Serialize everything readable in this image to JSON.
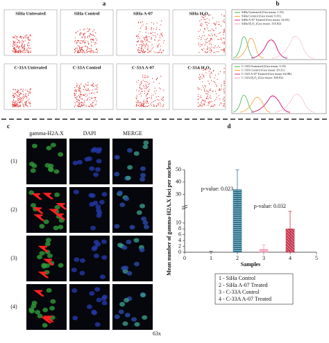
{
  "panel_labels": [
    "a",
    "b",
    "c",
    "d"
  ],
  "panel_a": {
    "plots": [
      "SiHa Untreated",
      "SiHa Control",
      "SiHa A-07",
      "SiHa H₂O₂",
      "C-33A Untreated",
      "C-33A Control",
      "C-33A A-07",
      "C-33A H₂O₂"
    ]
  },
  "panel_b": {
    "legends": [
      [
        "SiHa Untreated (Geo mean: 1.53)",
        "SiHa Control (Geo mean: 6.01)",
        "SiHa A-07 Treated (Geo mean: 34.03)",
        "SiHa H₂O₂ (Geo mean: 316.82)"
      ],
      [
        "C-33A Untreated (Geo mean: 3.19)",
        "C-33A Control (Geo mean: 29.31)",
        "C-33A A-07 Treated (Geo mean: 64.98)",
        "C-33A H₂O₂ (Geo mean: 306.82)"
      ]
    ]
  },
  "panel_c": {
    "columns": [
      "gamma-H2A.X",
      "DAPI",
      "MERGE"
    ],
    "rows": [
      "(1)",
      "(2)",
      "(3)",
      "(4)"
    ],
    "magnification": "63x"
  },
  "chart_data": {
    "type": "bar",
    "x": [
      1,
      2,
      3,
      4
    ],
    "values": [
      0,
      34,
      1,
      8
    ],
    "errors": [
      0.3,
      16,
      1.5,
      6
    ],
    "colors": [
      "#444444",
      "#2f7391",
      "#f2a0b8",
      "#c4314b"
    ],
    "xlim": [
      0,
      5
    ],
    "xticks": [
      0,
      1,
      2,
      3,
      4,
      5
    ],
    "ylim": [
      0,
      50
    ],
    "yticks": [
      0,
      2,
      4,
      6,
      8,
      10,
      30,
      40,
      50
    ],
    "x_label": "Samples",
    "y_label": "Mean number of gamma-H2A.X foci per nucleus",
    "annotations": [
      "p-value: 0.023",
      "p-value: 0.032"
    ],
    "legend": [
      "1 - SiHa Control",
      "2 - SiHa A-07 Treated",
      "3 - C-33A Control",
      "4 - C-33A A-07 Treated"
    ]
  }
}
